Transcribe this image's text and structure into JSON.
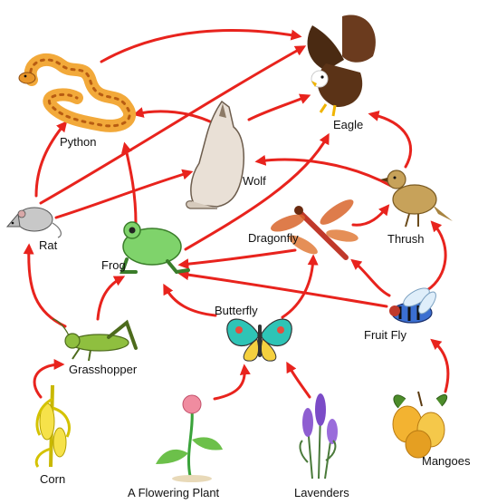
{
  "organisms": [
    {
      "id": "eagle",
      "label": "Eagle",
      "icon": "eagle-icon"
    },
    {
      "id": "python",
      "label": "Python",
      "icon": "python-icon"
    },
    {
      "id": "wolf",
      "label": "Wolf",
      "icon": "wolf-icon"
    },
    {
      "id": "rat",
      "label": "Rat",
      "icon": "rat-icon"
    },
    {
      "id": "frog",
      "label": "Frog",
      "icon": "frog-icon"
    },
    {
      "id": "dragonfly",
      "label": "Dragonfly",
      "icon": "dragonfly-icon"
    },
    {
      "id": "thrush",
      "label": "Thrush",
      "icon": "thrush-icon"
    },
    {
      "id": "butterfly",
      "label": "Butterfly",
      "icon": "butterfly-icon"
    },
    {
      "id": "fruitfly",
      "label": "Fruit Fly",
      "icon": "fruit-fly-icon"
    },
    {
      "id": "grasshopper",
      "label": "Grasshopper",
      "icon": "grasshopper-icon"
    },
    {
      "id": "corn",
      "label": "Corn",
      "icon": "corn-icon"
    },
    {
      "id": "flower",
      "label": "A Flowering Plant",
      "icon": "flowering-plant-icon"
    },
    {
      "id": "lavenders",
      "label": "Lavenders",
      "icon": "lavender-icon"
    },
    {
      "id": "mangoes",
      "label": "Mangoes",
      "icon": "mango-icon"
    }
  ],
  "links": [
    {
      "from": "corn",
      "to": "grasshopper"
    },
    {
      "from": "grasshopper",
      "to": "rat"
    },
    {
      "from": "grasshopper",
      "to": "frog"
    },
    {
      "from": "flower",
      "to": "butterfly"
    },
    {
      "from": "lavenders",
      "to": "butterfly"
    },
    {
      "from": "mangoes",
      "to": "fruitfly"
    },
    {
      "from": "butterfly",
      "to": "frog"
    },
    {
      "from": "butterfly",
      "to": "dragonfly"
    },
    {
      "from": "fruitfly",
      "to": "frog"
    },
    {
      "from": "fruitfly",
      "to": "dragonfly"
    },
    {
      "from": "fruitfly",
      "to": "thrush"
    },
    {
      "from": "dragonfly",
      "to": "frog"
    },
    {
      "from": "dragonfly",
      "to": "thrush"
    },
    {
      "from": "rat",
      "to": "python"
    },
    {
      "from": "rat",
      "to": "wolf"
    },
    {
      "from": "rat",
      "to": "eagle"
    },
    {
      "from": "frog",
      "to": "python"
    },
    {
      "from": "frog",
      "to": "eagle"
    },
    {
      "from": "wolf",
      "to": "python"
    },
    {
      "from": "wolf",
      "to": "eagle"
    },
    {
      "from": "python",
      "to": "eagle"
    },
    {
      "from": "thrush",
      "to": "wolf"
    },
    {
      "from": "thrush",
      "to": "eagle"
    }
  ],
  "colors": {
    "arrow": "#e8231d",
    "text": "#111111"
  }
}
